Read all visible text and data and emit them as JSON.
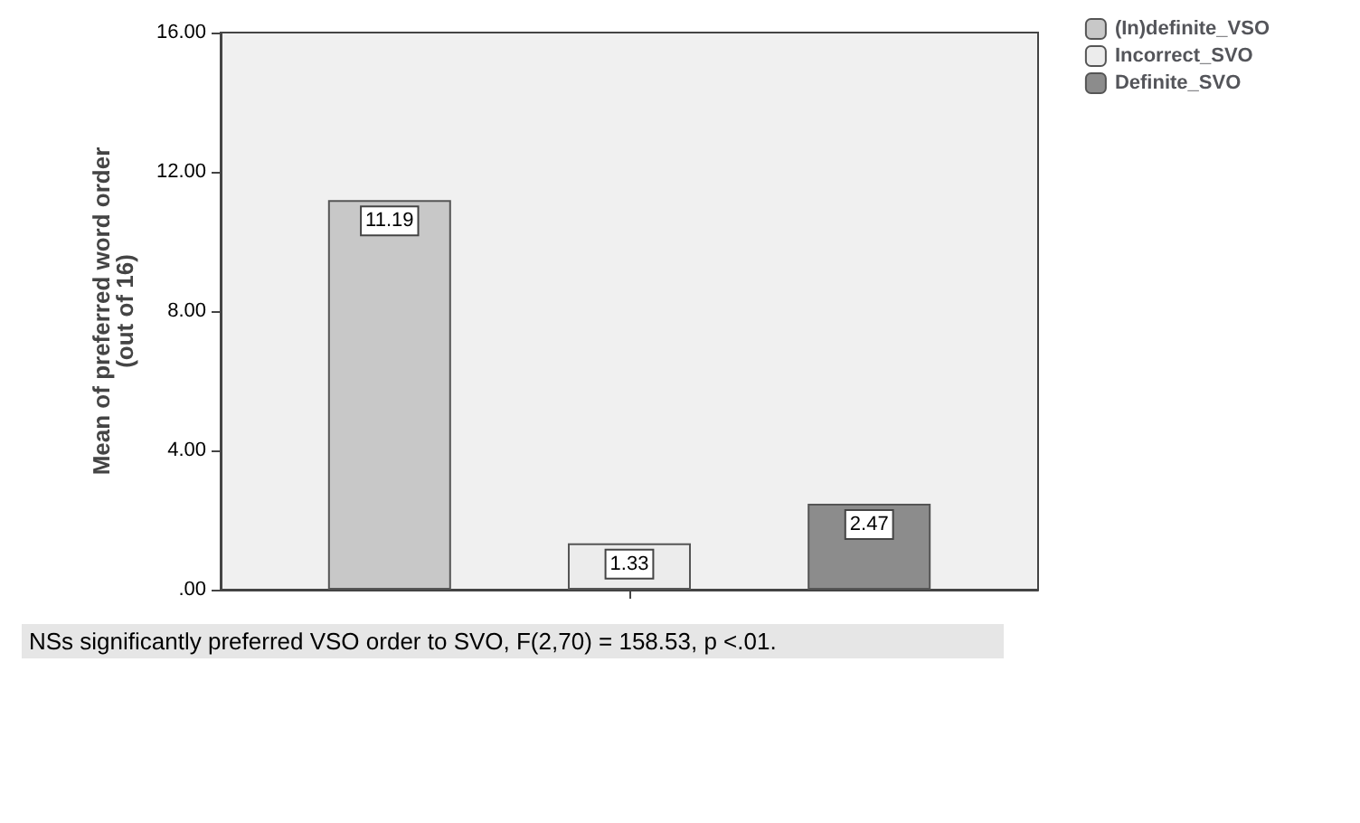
{
  "chart_data": {
    "type": "bar",
    "ylabel": "Mean of preferred word order\n(out of 16)",
    "categories": [
      null
    ],
    "series": [
      {
        "name": "(In)definite_VSO",
        "color": "#c8c8c8",
        "values": [
          11.19
        ]
      },
      {
        "name": "Incorrect_SVO",
        "color": "#ececec",
        "values": [
          1.33
        ]
      },
      {
        "name": "Definite_SVO",
        "color": "#8c8c8c",
        "values": [
          2.47
        ]
      }
    ],
    "ylim": [
      0,
      16
    ],
    "yticks": [
      {
        "value": 0,
        "label": ".00"
      },
      {
        "value": 4,
        "label": "4.00"
      },
      {
        "value": 8,
        "label": "8.00"
      },
      {
        "value": 12,
        "label": "12.00"
      },
      {
        "value": 16,
        "label": "16.00"
      }
    ],
    "data_labels": true,
    "grid": false,
    "legend": "top right",
    "annotations": [
      "NSs significantly preferred VSO order to SVO, F(2,70) = 158.53, p <.01."
    ]
  }
}
